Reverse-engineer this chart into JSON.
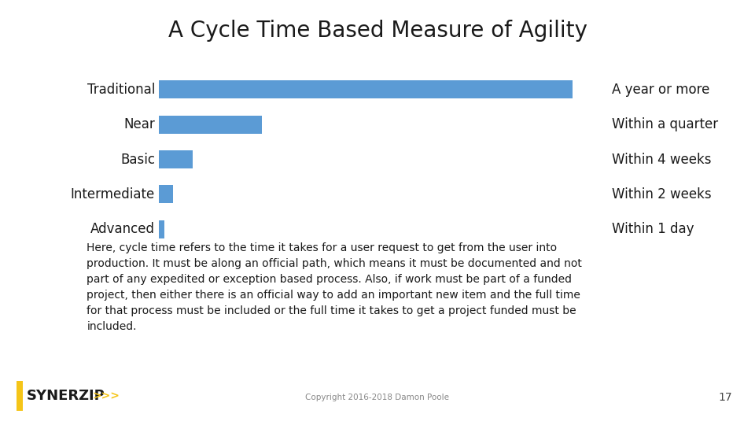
{
  "title": "A Cycle Time Based Measure of Agility",
  "title_fontsize": 20,
  "title_color": "#1a1a1a",
  "background_color": "#ffffff",
  "header_bg": "#eeeeee",
  "bar_color": "#5B9BD5",
  "categories": [
    "Traditional",
    "Near",
    "Basic",
    "Intermediate",
    "Advanced"
  ],
  "values": [
    52,
    13,
    4.2,
    1.8,
    0.7
  ],
  "annotations": [
    "A year or more",
    "Within a quarter",
    "Within 4 weeks",
    "Within 2 weeks",
    "Within 1 day"
  ],
  "annotation_fontsize": 12,
  "label_fontsize": 12,
  "body_text": "Here, cycle time refers to the time it takes for a user request to get from the user into\nproduction. It must be along an official path, which means it must be documented and not\npart of any expedited or exception based process. Also, if work must be part of a funded\nproject, then either there is an official way to add an important new item and the full time\nfor that process must be included or the full time it takes to get a project funded must be\nincluded.",
  "body_fontsize": 10,
  "copyright_text": "Copyright 2016-2018 Damon Poole",
  "page_number": "17",
  "divider_color_dark": "#2E5F8A",
  "divider_color_light": "#5B9BD5",
  "synerzip_bar_color": "#F5C518",
  "synerzip_text_color": "#1a1a1a",
  "synerzip_chevron_color": "#F5C518",
  "footer_text_color": "#888888"
}
